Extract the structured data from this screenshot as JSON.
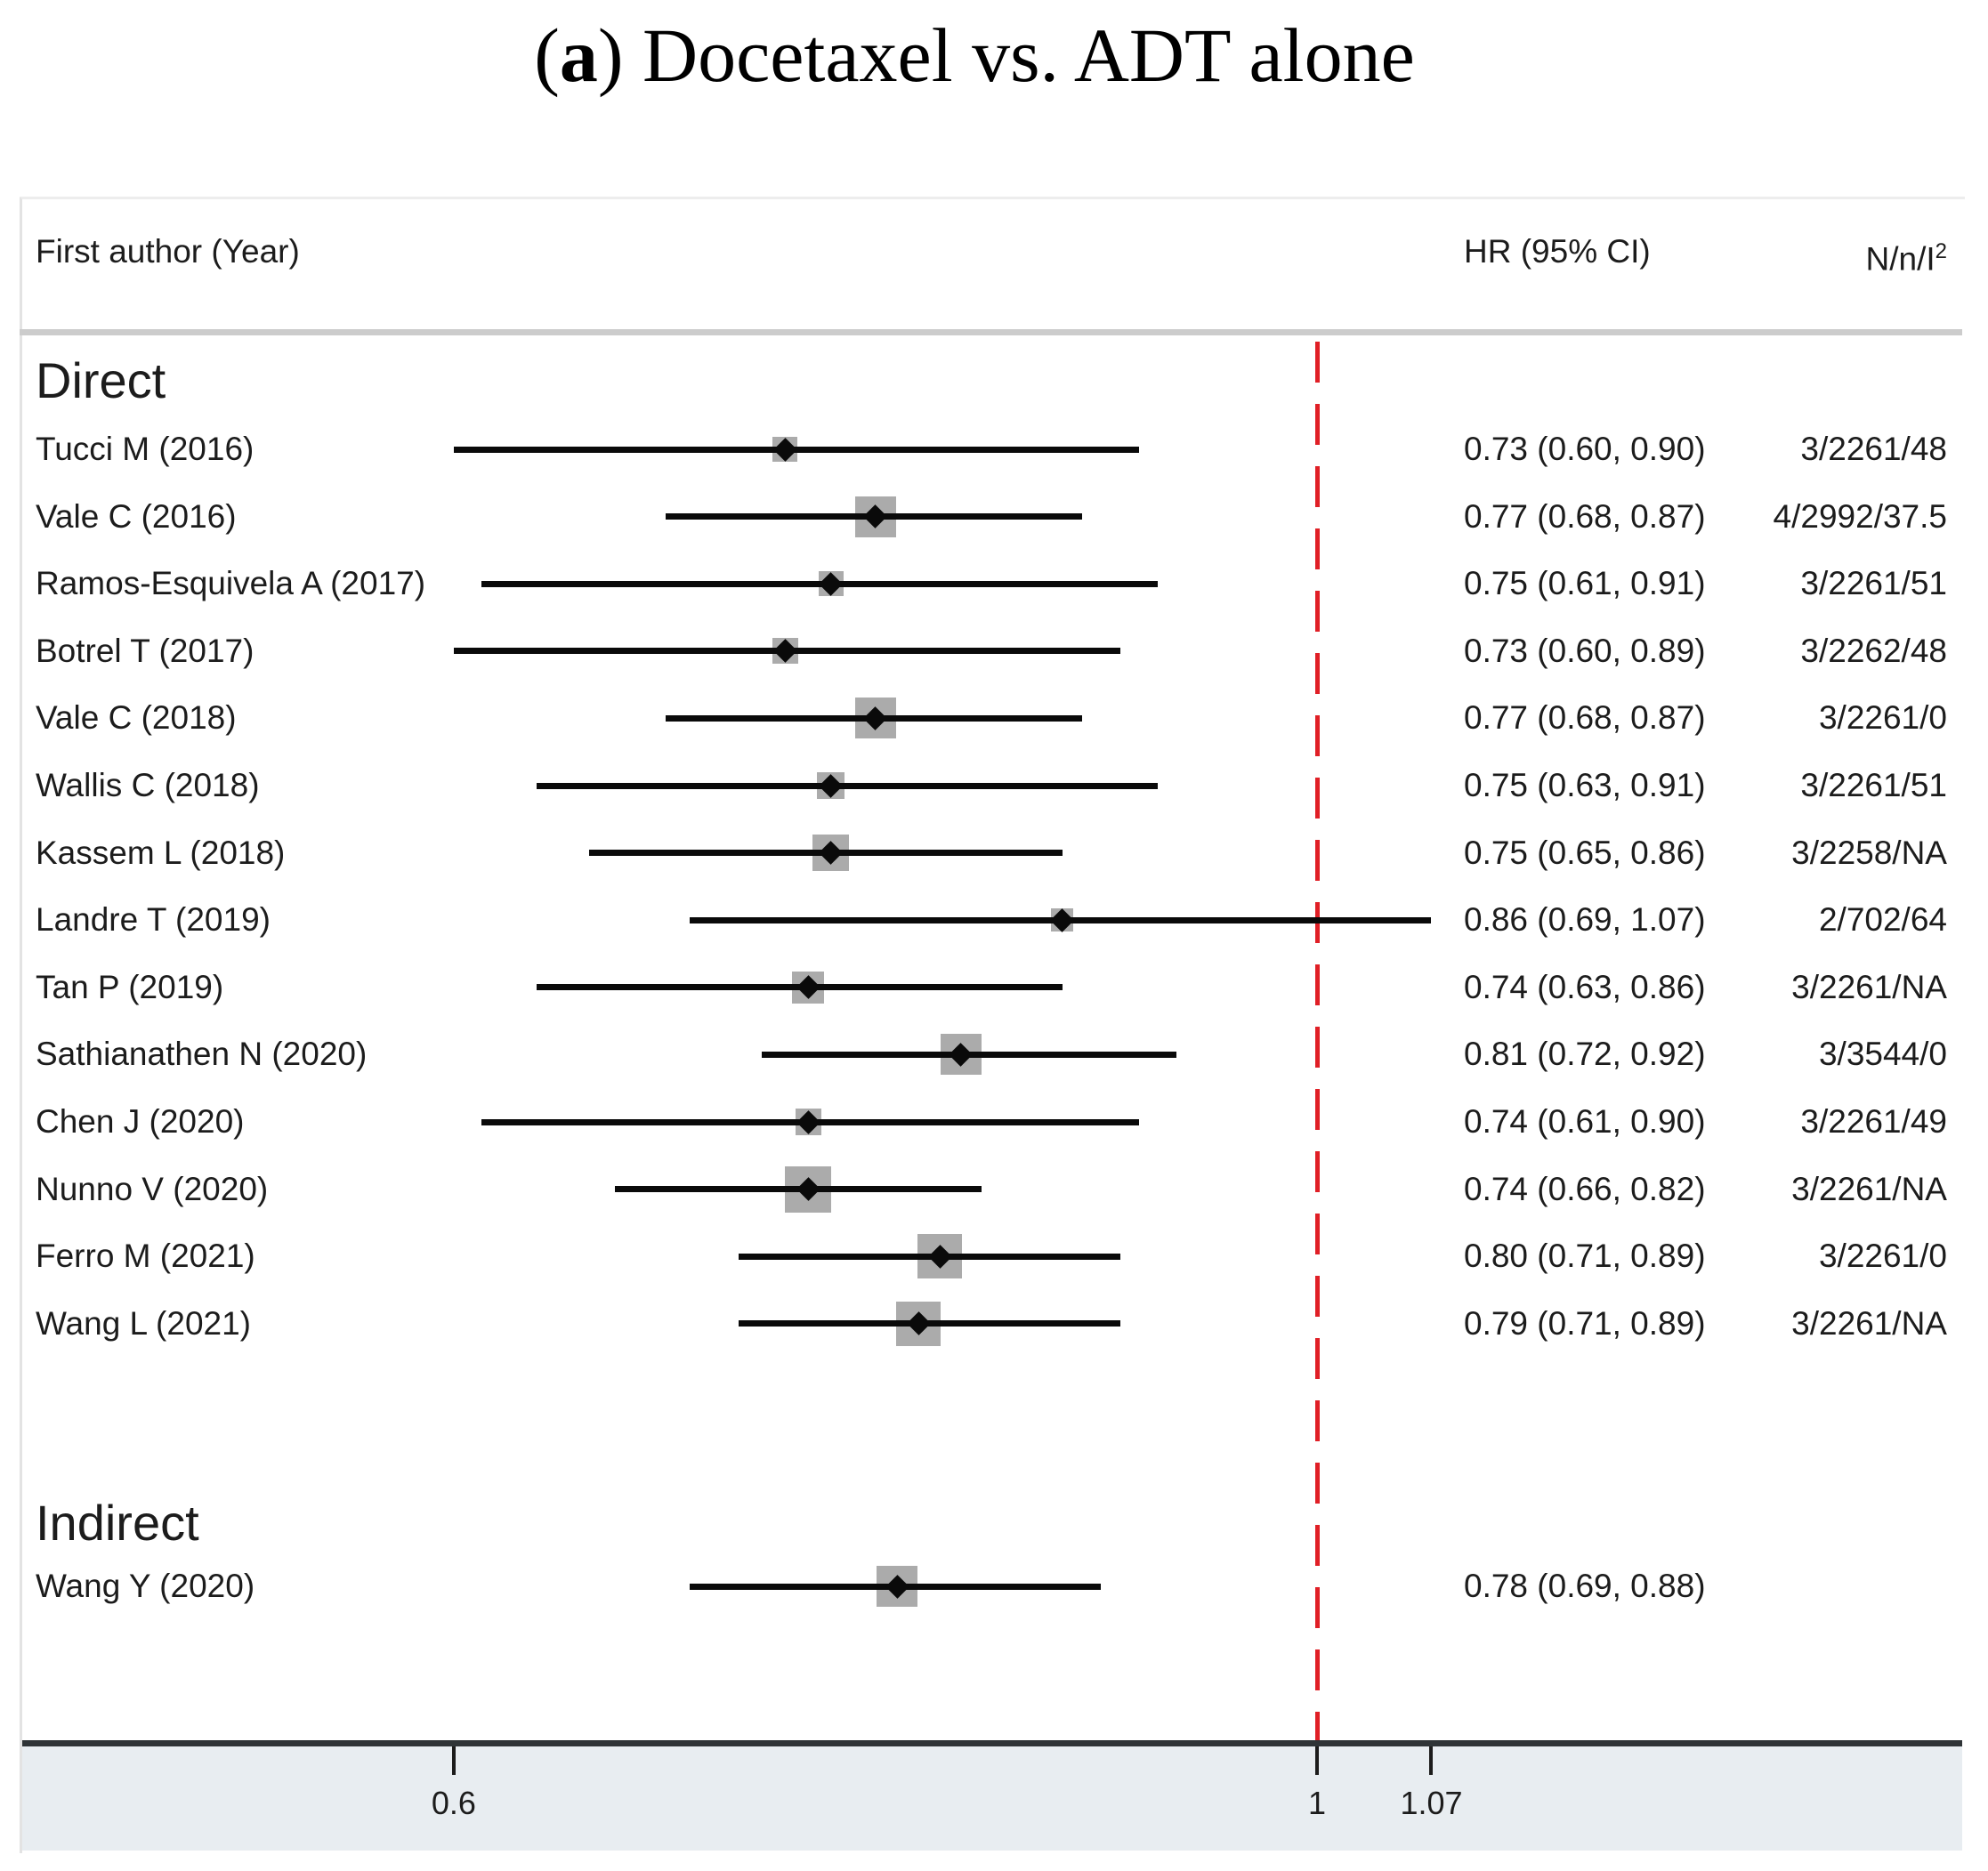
{
  "ui": {
    "title_open": "(",
    "title_marker": "a",
    "title_close": ")",
    "title_rest": " Docetaxel vs. ADT alone",
    "col_study": "First author (Year)",
    "col_hr": "HR (95% CI)",
    "col_nn": "N/n/I",
    "col_nn_sup": "2"
  },
  "colors": {
    "reference_line": "#e01f26",
    "ci_line": "#0a0a0a",
    "weight_box": "#ababab",
    "diamond": "#0a0a0a",
    "band": "#e8edf1",
    "divider": "#cccccc",
    "axis_line": "#2f3437",
    "tick": "#1c1c1c",
    "text": "#1c1c1c"
  },
  "chart_data": {
    "type": "scatter",
    "variant": "forest-plot",
    "title": "(a) Docetaxel vs. ADT alone",
    "x_scale": "log",
    "x_axis": {
      "ticks": [
        {
          "value": 0.6,
          "label": "0.6"
        },
        {
          "value": 1,
          "label": "1"
        },
        {
          "value": 1.07,
          "label": "1.07"
        }
      ],
      "reference_line": 1
    },
    "columns": [
      "First author (Year)",
      "HR (95% CI)",
      "N/n/I2"
    ],
    "groups": [
      {
        "name": "Direct",
        "studies": [
          {
            "label": "Tucci M (2016)",
            "hr": 0.73,
            "ci_low": 0.6,
            "ci_high": 0.9,
            "hr_text": "0.73 (0.60, 0.90)",
            "nni2": "3/2261/48"
          },
          {
            "label": "Vale C (2016)",
            "hr": 0.77,
            "ci_low": 0.68,
            "ci_high": 0.87,
            "hr_text": "0.77 (0.68, 0.87)",
            "nni2": "4/2992/37.5"
          },
          {
            "label": "Ramos-Esquivela A (2017)",
            "hr": 0.75,
            "ci_low": 0.61,
            "ci_high": 0.91,
            "hr_text": "0.75 (0.61, 0.91)",
            "nni2": "3/2261/51"
          },
          {
            "label": "Botrel T (2017)",
            "hr": 0.73,
            "ci_low": 0.6,
            "ci_high": 0.89,
            "hr_text": "0.73 (0.60, 0.89)",
            "nni2": "3/2262/48"
          },
          {
            "label": "Vale C (2018)",
            "hr": 0.77,
            "ci_low": 0.68,
            "ci_high": 0.87,
            "hr_text": "0.77 (0.68, 0.87)",
            "nni2": "3/2261/0"
          },
          {
            "label": "Wallis C (2018)",
            "hr": 0.75,
            "ci_low": 0.63,
            "ci_high": 0.91,
            "hr_text": "0.75 (0.63, 0.91)",
            "nni2": "3/2261/51"
          },
          {
            "label": "Kassem L (2018)",
            "hr": 0.75,
            "ci_low": 0.65,
            "ci_high": 0.86,
            "hr_text": "0.75 (0.65, 0.86)",
            "nni2": "3/2258/NA"
          },
          {
            "label": "Landre T (2019)",
            "hr": 0.86,
            "ci_low": 0.69,
            "ci_high": 1.07,
            "hr_text": "0.86 (0.69, 1.07)",
            "nni2": "2/702/64"
          },
          {
            "label": "Tan P (2019)",
            "hr": 0.74,
            "ci_low": 0.63,
            "ci_high": 0.86,
            "hr_text": "0.74 (0.63, 0.86)",
            "nni2": "3/2261/NA"
          },
          {
            "label": "Sathianathen N (2020)",
            "hr": 0.81,
            "ci_low": 0.72,
            "ci_high": 0.92,
            "hr_text": "0.81 (0.72, 0.92)",
            "nni2": "3/3544/0"
          },
          {
            "label": "Chen J (2020)",
            "hr": 0.74,
            "ci_low": 0.61,
            "ci_high": 0.9,
            "hr_text": "0.74 (0.61, 0.90)",
            "nni2": "3/2261/49"
          },
          {
            "label": "Nunno V (2020)",
            "hr": 0.74,
            "ci_low": 0.66,
            "ci_high": 0.82,
            "hr_text": "0.74 (0.66, 0.82)",
            "nni2": "3/2261/NA"
          },
          {
            "label": "Ferro M (2021)",
            "hr": 0.8,
            "ci_low": 0.71,
            "ci_high": 0.89,
            "hr_text": "0.80 (0.71, 0.89)",
            "nni2": "3/2261/0"
          },
          {
            "label": "Wang L (2021)",
            "hr": 0.79,
            "ci_low": 0.71,
            "ci_high": 0.89,
            "hr_text": "0.79 (0.71, 0.89)",
            "nni2": "3/2261/NA"
          }
        ]
      },
      {
        "name": "Indirect",
        "studies": [
          {
            "label": "Wang Y (2020)",
            "hr": 0.78,
            "ci_low": 0.69,
            "ci_high": 0.88,
            "hr_text": "0.78 (0.69, 0.88)",
            "nni2": ""
          }
        ]
      }
    ]
  }
}
